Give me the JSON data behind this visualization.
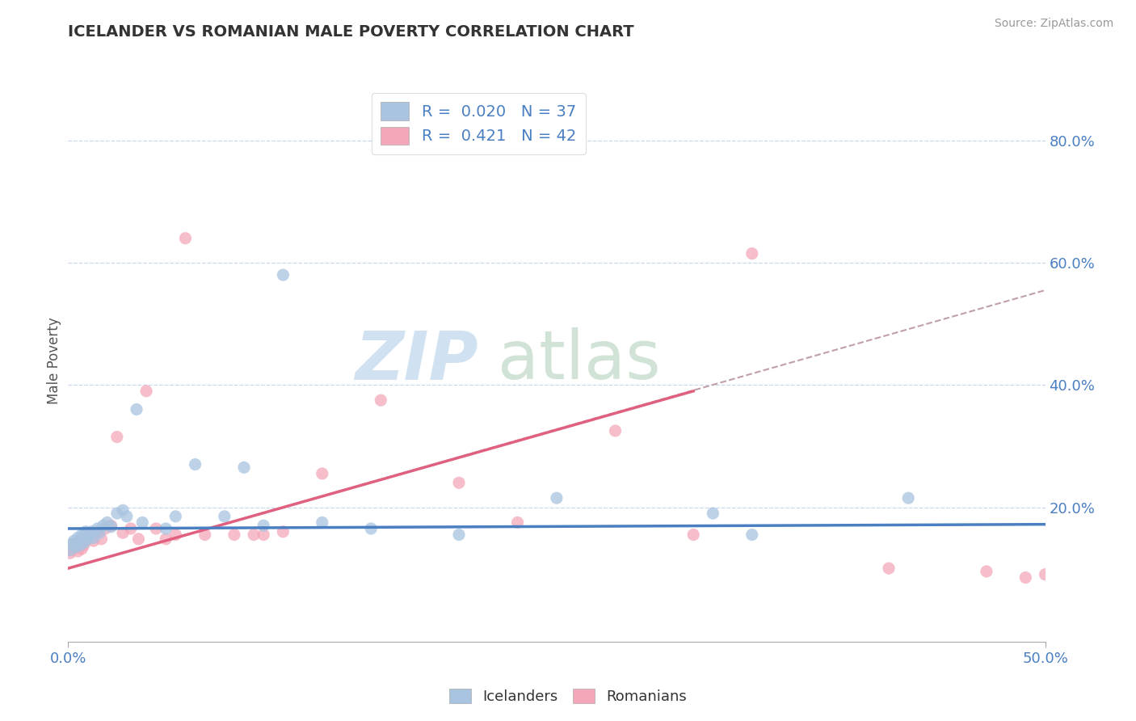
{
  "title": "ICELANDER VS ROMANIAN MALE POVERTY CORRELATION CHART",
  "source": "Source: ZipAtlas.com",
  "ylabel": "Male Poverty",
  "right_yticks": [
    "80.0%",
    "60.0%",
    "40.0%",
    "20.0%"
  ],
  "right_ytick_vals": [
    0.8,
    0.6,
    0.4,
    0.2
  ],
  "xlim": [
    0.0,
    0.5
  ],
  "ylim": [
    -0.02,
    0.9
  ],
  "icelander_color": "#a8c4e0",
  "romanian_color": "#f4a7b9",
  "icelander_line_color": "#4a7fc1",
  "romanian_line_color": "#e06080",
  "dashed_line_color": "#c0a0a8",
  "grid_color": "#c8d8ec",
  "icelander_R": 0.02,
  "icelander_N": 37,
  "romanian_R": 0.421,
  "romanian_N": 42,
  "ice_line_x": [
    0.0,
    0.5
  ],
  "ice_line_y": [
    0.165,
    0.172
  ],
  "rom_line_x": [
    0.0,
    0.32
  ],
  "rom_line_y": [
    0.1,
    0.39
  ],
  "dash_line_x": [
    0.0,
    0.5
  ],
  "dash_line_y": [
    0.1,
    0.555
  ],
  "icelander_x": [
    0.001,
    0.002,
    0.003,
    0.004,
    0.005,
    0.006,
    0.007,
    0.008,
    0.009,
    0.01,
    0.011,
    0.012,
    0.013,
    0.015,
    0.016,
    0.018,
    0.02,
    0.022,
    0.025,
    0.028,
    0.03,
    0.035,
    0.038,
    0.05,
    0.055,
    0.065,
    0.08,
    0.09,
    0.1,
    0.11,
    0.13,
    0.155,
    0.2,
    0.25,
    0.33,
    0.35,
    0.43
  ],
  "icelander_y": [
    0.13,
    0.14,
    0.145,
    0.135,
    0.15,
    0.138,
    0.155,
    0.142,
    0.16,
    0.148,
    0.155,
    0.16,
    0.15,
    0.165,
    0.158,
    0.17,
    0.175,
    0.168,
    0.19,
    0.195,
    0.185,
    0.36,
    0.175,
    0.165,
    0.185,
    0.27,
    0.185,
    0.265,
    0.17,
    0.58,
    0.175,
    0.165,
    0.155,
    0.215,
    0.19,
    0.155,
    0.215
  ],
  "romanian_x": [
    0.001,
    0.002,
    0.003,
    0.004,
    0.005,
    0.006,
    0.007,
    0.008,
    0.009,
    0.01,
    0.011,
    0.012,
    0.013,
    0.015,
    0.017,
    0.019,
    0.022,
    0.025,
    0.028,
    0.032,
    0.036,
    0.04,
    0.045,
    0.05,
    0.055,
    0.06,
    0.07,
    0.085,
    0.095,
    0.1,
    0.11,
    0.13,
    0.16,
    0.2,
    0.23,
    0.28,
    0.32,
    0.35,
    0.42,
    0.47,
    0.49,
    0.5
  ],
  "romanian_y": [
    0.125,
    0.13,
    0.14,
    0.135,
    0.128,
    0.145,
    0.132,
    0.138,
    0.155,
    0.148,
    0.152,
    0.158,
    0.145,
    0.16,
    0.148,
    0.165,
    0.17,
    0.315,
    0.158,
    0.165,
    0.148,
    0.39,
    0.165,
    0.148,
    0.155,
    0.64,
    0.155,
    0.155,
    0.155,
    0.155,
    0.16,
    0.255,
    0.375,
    0.24,
    0.175,
    0.325,
    0.155,
    0.615,
    0.1,
    0.095,
    0.085,
    0.09
  ]
}
